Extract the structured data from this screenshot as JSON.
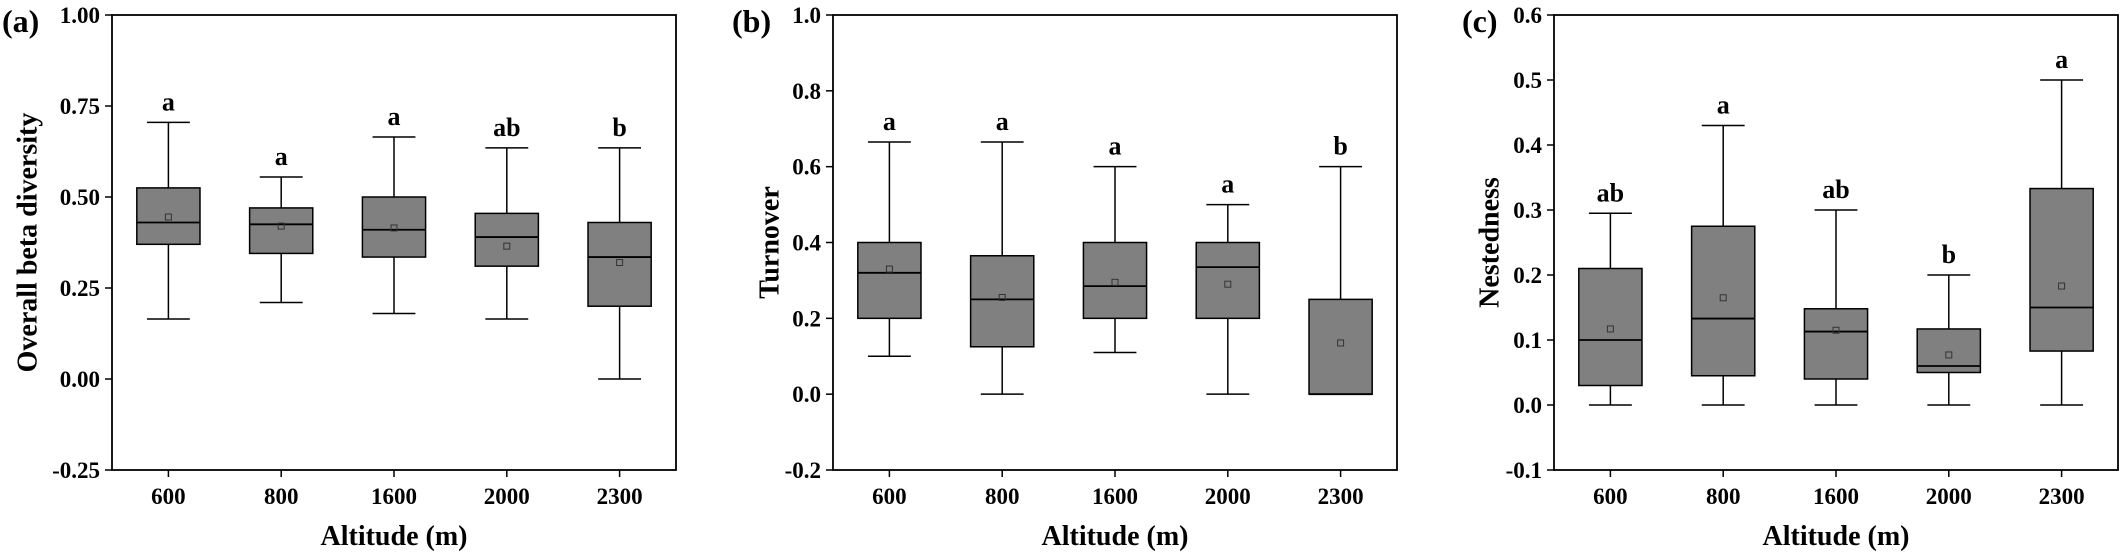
{
  "chart_data": [
    {
      "type": "box",
      "panel_label": "(a)",
      "xlabel": "Altitude (m)",
      "ylabel": "Overall beta diversity",
      "ylim": [
        -0.25,
        1.0
      ],
      "yticks": [
        -0.25,
        0.0,
        0.25,
        0.5,
        0.75,
        1.0
      ],
      "ytick_labels": [
        "-0.25",
        "0.00",
        "0.25",
        "0.50",
        "0.75",
        "1.00"
      ],
      "categories": [
        "600",
        "800",
        "1600",
        "2000",
        "2300"
      ],
      "boxes": [
        {
          "min": 0.165,
          "q1": 0.37,
          "median": 0.43,
          "q3": 0.525,
          "max": 0.705,
          "mean": 0.445,
          "letter": "a"
        },
        {
          "min": 0.21,
          "q1": 0.345,
          "median": 0.425,
          "q3": 0.47,
          "max": 0.555,
          "mean": 0.42,
          "letter": "a"
        },
        {
          "min": 0.18,
          "q1": 0.335,
          "median": 0.41,
          "q3": 0.5,
          "max": 0.665,
          "mean": 0.415,
          "letter": "a"
        },
        {
          "min": 0.165,
          "q1": 0.31,
          "median": 0.39,
          "q3": 0.455,
          "max": 0.635,
          "mean": 0.365,
          "letter": "ab"
        },
        {
          "min": 0.0,
          "q1": 0.2,
          "median": 0.335,
          "q3": 0.43,
          "max": 0.635,
          "mean": 0.32,
          "letter": "b"
        }
      ]
    },
    {
      "type": "box",
      "panel_label": "(b)",
      "xlabel": "Altitude (m)",
      "ylabel": "Turnover",
      "ylim": [
        -0.2,
        1.0
      ],
      "yticks": [
        -0.2,
        0.0,
        0.2,
        0.4,
        0.6,
        0.8,
        1.0
      ],
      "ytick_labels": [
        "-0.2",
        "0.0",
        "0.2",
        "0.4",
        "0.6",
        "0.8",
        "1.0"
      ],
      "categories": [
        "600",
        "800",
        "1600",
        "2000",
        "2300"
      ],
      "boxes": [
        {
          "min": 0.1,
          "q1": 0.2,
          "median": 0.32,
          "q3": 0.4,
          "max": 0.665,
          "mean": 0.33,
          "letter": "a"
        },
        {
          "min": 0.0,
          "q1": 0.125,
          "median": 0.25,
          "q3": 0.365,
          "max": 0.665,
          "mean": 0.255,
          "letter": "a"
        },
        {
          "min": 0.11,
          "q1": 0.2,
          "median": 0.285,
          "q3": 0.4,
          "max": 0.6,
          "mean": 0.295,
          "letter": "a"
        },
        {
          "min": 0.0,
          "q1": 0.2,
          "median": 0.335,
          "q3": 0.4,
          "max": 0.5,
          "mean": 0.29,
          "letter": "a"
        },
        {
          "min": 0.0,
          "q1": 0.0,
          "median": 0.0,
          "q3": 0.25,
          "max": 0.6,
          "mean": 0.135,
          "letter": "b"
        }
      ]
    },
    {
      "type": "box",
      "panel_label": "(c)",
      "xlabel": "Altitude (m)",
      "ylabel": "Nestedness",
      "ylim": [
        -0.1,
        0.6
      ],
      "yticks": [
        -0.1,
        0.0,
        0.1,
        0.2,
        0.3,
        0.4,
        0.5,
        0.6
      ],
      "ytick_labels": [
        "-0.1",
        "0.0",
        "0.1",
        "0.2",
        "0.3",
        "0.4",
        "0.5",
        "0.6"
      ],
      "categories": [
        "600",
        "800",
        "1600",
        "2000",
        "2300"
      ],
      "boxes": [
        {
          "min": 0.0,
          "q1": 0.03,
          "median": 0.1,
          "q3": 0.21,
          "max": 0.295,
          "mean": 0.117,
          "letter": "ab"
        },
        {
          "min": 0.0,
          "q1": 0.045,
          "median": 0.133,
          "q3": 0.275,
          "max": 0.43,
          "mean": 0.165,
          "letter": "a"
        },
        {
          "min": 0.0,
          "q1": 0.04,
          "median": 0.113,
          "q3": 0.148,
          "max": 0.3,
          "mean": 0.115,
          "letter": "ab"
        },
        {
          "min": 0.0,
          "q1": 0.05,
          "median": 0.06,
          "q3": 0.117,
          "max": 0.2,
          "mean": 0.077,
          "letter": "b"
        },
        {
          "min": 0.0,
          "q1": 0.083,
          "median": 0.15,
          "q3": 0.333,
          "max": 0.5,
          "mean": 0.183,
          "letter": "a"
        }
      ]
    }
  ],
  "colors": {
    "box_fill": "#808080",
    "line": "#000000",
    "background": "#ffffff"
  }
}
